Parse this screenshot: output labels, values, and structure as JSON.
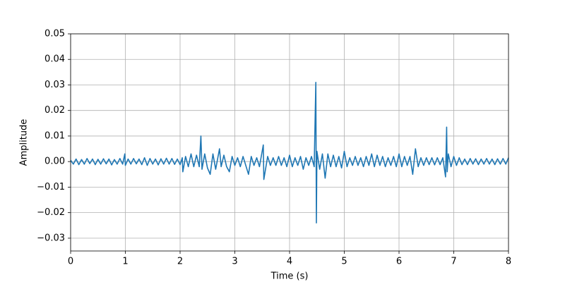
{
  "chart_data": {
    "type": "line",
    "xlabel": "Time (s)",
    "ylabel": "Amplitude",
    "color": "#1f77b4",
    "grid": true,
    "xlim": [
      0,
      8
    ],
    "ylim": [
      -0.035,
      0.05
    ],
    "xticks": [
      0,
      1,
      2,
      3,
      4,
      5,
      6,
      7,
      8
    ],
    "yticks": [
      {
        "value": -0.03,
        "label": "−0.03"
      },
      {
        "value": -0.02,
        "label": "−0.02"
      },
      {
        "value": -0.01,
        "label": "−0.01"
      },
      {
        "value": 0,
        "label": "0.00"
      },
      {
        "value": 0.01,
        "label": "0.01"
      },
      {
        "value": 0.02,
        "label": "0.02"
      },
      {
        "value": 0.03,
        "label": "0.03"
      },
      {
        "value": 0.04,
        "label": "0.04"
      },
      {
        "value": 0.05,
        "label": "0.05"
      }
    ],
    "x": [
      0,
      0.05,
      0.1,
      0.15,
      0.2,
      0.25,
      0.3,
      0.35,
      0.4,
      0.45,
      0.5,
      0.55,
      0.6,
      0.65,
      0.7,
      0.75,
      0.8,
      0.85,
      0.9,
      0.95,
      0.99,
      1.0,
      1.05,
      1.1,
      1.15,
      1.2,
      1.25,
      1.3,
      1.35,
      1.4,
      1.45,
      1.5,
      1.55,
      1.6,
      1.65,
      1.7,
      1.75,
      1.8,
      1.85,
      1.9,
      1.95,
      2.0,
      2.04,
      2.05,
      2.1,
      2.15,
      2.2,
      2.25,
      2.3,
      2.35,
      2.38,
      2.4,
      2.45,
      2.5,
      2.55,
      2.6,
      2.65,
      2.72,
      2.75,
      2.8,
      2.85,
      2.9,
      2.95,
      3.0,
      3.05,
      3.1,
      3.15,
      3.2,
      3.25,
      3.3,
      3.35,
      3.4,
      3.45,
      3.52,
      3.53,
      3.6,
      3.65,
      3.7,
      3.75,
      3.8,
      3.85,
      3.9,
      3.95,
      4.0,
      4.05,
      4.1,
      4.15,
      4.2,
      4.25,
      4.3,
      4.35,
      4.4,
      4.45,
      4.48,
      4.49,
      4.5,
      4.55,
      4.6,
      4.65,
      4.7,
      4.75,
      4.8,
      4.85,
      4.9,
      4.95,
      5.0,
      5.05,
      5.1,
      5.15,
      5.2,
      5.25,
      5.3,
      5.35,
      5.4,
      5.45,
      5.5,
      5.55,
      5.6,
      5.65,
      5.7,
      5.75,
      5.8,
      5.85,
      5.9,
      5.95,
      6.0,
      6.05,
      6.1,
      6.15,
      6.2,
      6.25,
      6.3,
      6.35,
      6.4,
      6.45,
      6.5,
      6.55,
      6.6,
      6.65,
      6.7,
      6.75,
      6.8,
      6.85,
      6.87,
      6.88,
      6.9,
      6.95,
      7.0,
      7.05,
      7.1,
      7.15,
      7.2,
      7.25,
      7.3,
      7.35,
      7.4,
      7.45,
      7.5,
      7.55,
      7.6,
      7.65,
      7.7,
      7.75,
      7.8,
      7.85,
      7.9,
      7.95,
      8.0
    ],
    "values": [
      0.0005,
      -0.001,
      0.001,
      -0.0012,
      0.0008,
      -0.001,
      0.0012,
      -0.0008,
      0.001,
      -0.0012,
      0.0009,
      -0.001,
      0.0011,
      -0.0009,
      0.001,
      -0.0013,
      0.0008,
      -0.001,
      0.0012,
      -0.001,
      0.003,
      -0.0015,
      0.001,
      -0.001,
      0.0012,
      -0.0009,
      0.001,
      -0.0012,
      0.0015,
      -0.0015,
      0.0012,
      -0.001,
      0.001,
      -0.0013,
      0.0011,
      -0.001,
      0.0013,
      -0.001,
      0.0012,
      -0.0011,
      0.001,
      -0.0012,
      0.0015,
      -0.004,
      0.002,
      -0.002,
      0.003,
      -0.002,
      0.0025,
      -0.002,
      0.01,
      -0.003,
      0.003,
      -0.0025,
      -0.005,
      0.003,
      -0.003,
      0.005,
      -0.002,
      0.0025,
      -0.002,
      -0.004,
      0.002,
      -0.0015,
      0.0015,
      -0.002,
      0.002,
      -0.0015,
      -0.005,
      0.002,
      -0.0015,
      0.0015,
      -0.002,
      0.0065,
      -0.007,
      0.002,
      -0.0015,
      0.0015,
      -0.0015,
      0.002,
      -0.0015,
      0.0015,
      -0.002,
      0.0025,
      -0.002,
      0.0015,
      -0.0015,
      0.002,
      -0.003,
      0.0015,
      -0.0015,
      0.002,
      -0.002,
      0.031,
      -0.024,
      0.004,
      -0.003,
      0.003,
      -0.0065,
      0.003,
      -0.002,
      0.0025,
      -0.002,
      0.002,
      -0.0025,
      0.004,
      -0.002,
      0.0015,
      -0.0015,
      0.002,
      -0.0015,
      0.0015,
      -0.002,
      0.002,
      -0.0015,
      0.003,
      -0.002,
      0.0025,
      -0.0015,
      0.002,
      -0.002,
      0.0015,
      -0.0015,
      0.002,
      -0.002,
      0.003,
      -0.002,
      0.002,
      -0.0015,
      0.002,
      -0.005,
      0.005,
      -0.002,
      0.0015,
      -0.0015,
      0.0015,
      -0.0012,
      0.0015,
      -0.0013,
      0.0015,
      -0.0012,
      0.0015,
      -0.006,
      0.0135,
      -0.004,
      0.003,
      -0.002,
      0.002,
      -0.0015,
      0.0015,
      -0.0012,
      0.001,
      -0.0012,
      0.0012,
      -0.001,
      0.0011,
      -0.0012,
      0.001,
      -0.001,
      0.0012,
      -0.001,
      0.001,
      -0.0012,
      0.0011,
      -0.001,
      0.0012,
      -0.001,
      0.0015
    ]
  }
}
